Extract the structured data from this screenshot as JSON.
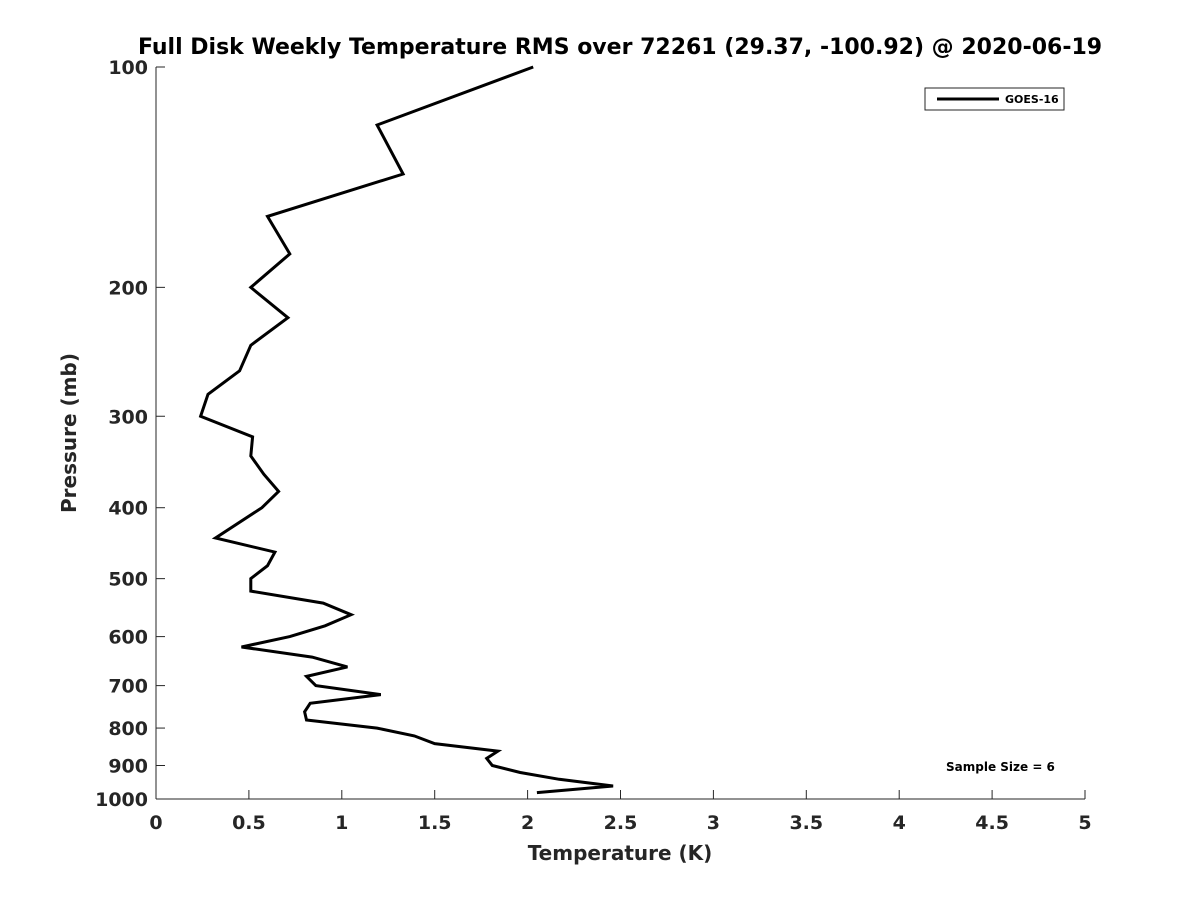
{
  "chart_data": {
    "type": "line",
    "title": "Full Disk Weekly Temperature RMS over 72261 (29.37, -100.92) @ 2020-06-19",
    "xlabel": "Temperature (K)",
    "ylabel": "Pressure (mb)",
    "xlim": [
      0,
      5
    ],
    "ylim": [
      100,
      1000
    ],
    "yscale": "log",
    "y_reversed": true,
    "grid": false,
    "xticks": [
      "0",
      "0.5",
      "1",
      "1.5",
      "2",
      "2.5",
      "3",
      "3.5",
      "4",
      "4.5",
      "5"
    ],
    "xtick_values": [
      0,
      0.5,
      1,
      1.5,
      2,
      2.5,
      3,
      3.5,
      4,
      4.5,
      5
    ],
    "yticks": [
      "100",
      "200",
      "300",
      "400",
      "500",
      "600",
      "700",
      "800",
      "900",
      "1000"
    ],
    "ytick_values": [
      100,
      200,
      300,
      400,
      500,
      600,
      700,
      800,
      900,
      1000
    ],
    "legend": {
      "placement": "top-right",
      "entries": [
        "GOES-16"
      ]
    },
    "annotation": "Sample Size = 6",
    "line_color": "#000000",
    "series": [
      {
        "name": "GOES-16",
        "x": [
          2.03,
          1.19,
          1.33,
          0.6,
          0.72,
          0.51,
          0.71,
          0.51,
          0.45,
          0.28,
          0.24,
          0.52,
          0.51,
          0.58,
          0.66,
          0.57,
          0.32,
          0.64,
          0.6,
          0.51,
          0.51,
          0.9,
          1.05,
          0.91,
          0.72,
          0.46,
          0.84,
          1.03,
          0.81,
          0.86,
          1.21,
          0.83,
          0.8,
          0.81,
          1.19,
          1.39,
          1.5,
          1.84,
          1.78,
          1.81,
          1.96,
          2.17,
          2.46,
          2.05
        ],
        "y": [
          100,
          120,
          140,
          160,
          180,
          200,
          220,
          240,
          260,
          280,
          300,
          320,
          340,
          360,
          380,
          400,
          440,
          460,
          480,
          500,
          520,
          540,
          560,
          580,
          600,
          620,
          640,
          660,
          680,
          700,
          720,
          740,
          760,
          780,
          800,
          820,
          840,
          860,
          880,
          900,
          920,
          940,
          960,
          980
        ]
      }
    ]
  }
}
